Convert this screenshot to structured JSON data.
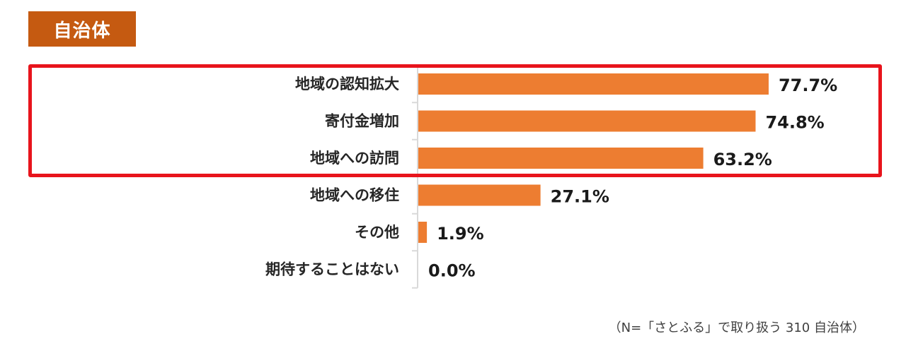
{
  "title": "自治体",
  "footnote": "（N=「さとふる」で取り扱う 310 自治体）",
  "colors": {
    "bar": "#ed7d31",
    "title_bg": "#c55a11",
    "highlight": "#e8141c",
    "axis": "#d9d9d9"
  },
  "chart_data": {
    "type": "bar",
    "orientation": "horizontal",
    "title": "自治体",
    "categories": [
      "地域の認知拡大",
      "寄付金増加",
      "地域への訪問",
      "地域への移住",
      "その他",
      "期待することはない"
    ],
    "values": [
      77.7,
      74.8,
      63.2,
      27.1,
      1.9,
      0.0
    ],
    "value_labels": [
      "77.7%",
      "74.8%",
      "63.2%",
      "27.1%",
      "1.9%",
      "0.0%"
    ],
    "unit": "%",
    "xlim": [
      0,
      100
    ],
    "grid": false,
    "legend": "none",
    "highlighted_categories": [
      "地域の認知拡大",
      "寄付金増加",
      "地域への訪問"
    ]
  }
}
